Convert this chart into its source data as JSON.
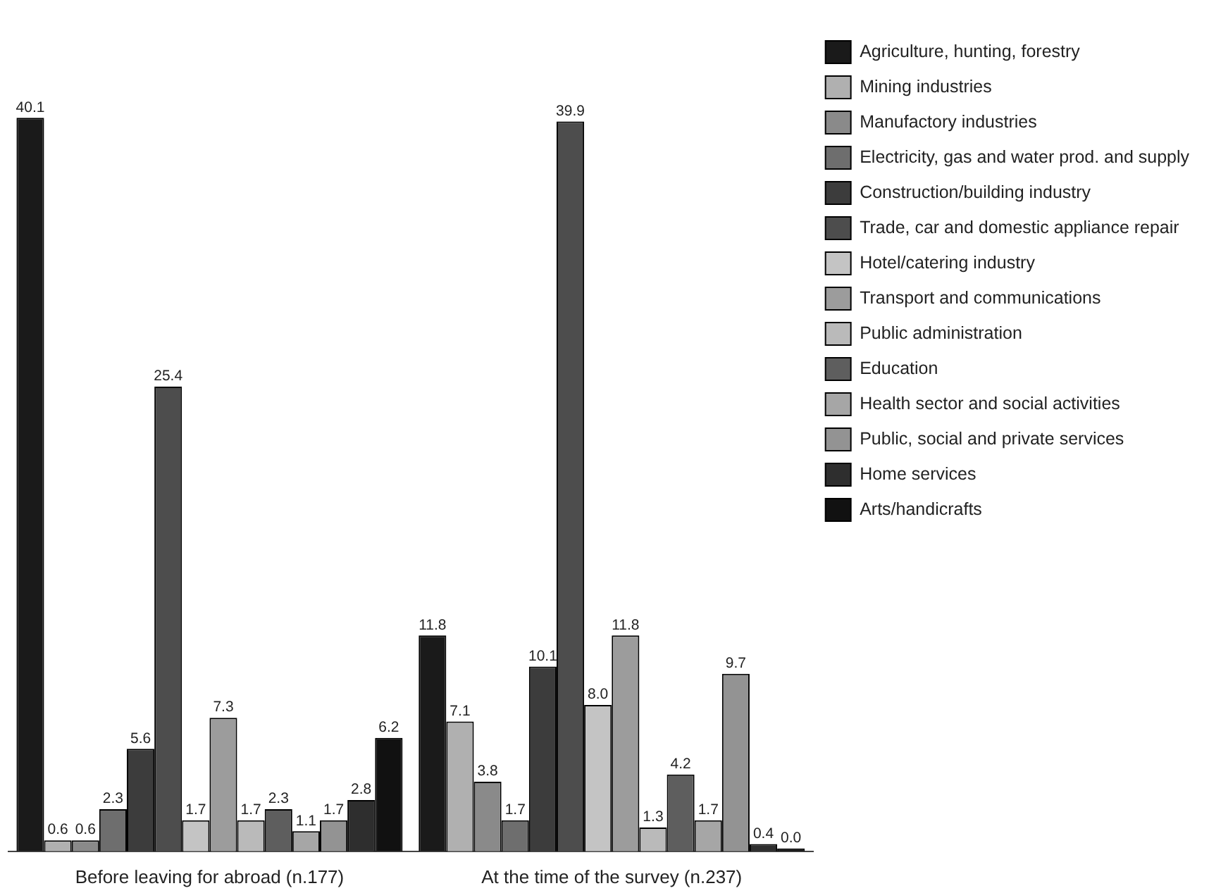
{
  "chart_data": {
    "type": "bar",
    "categories": [
      "Before leaving for abroad (n.177)",
      "At the time of the survey (n.237)"
    ],
    "legend": "right",
    "grid": false,
    "series": [
      {
        "name": "Agriculture, hunting, forestry",
        "color": "#1a1a1a",
        "values": [
          40.1,
          11.8
        ],
        "value_labels": [
          "40.1",
          "11.8"
        ]
      },
      {
        "name": "Mining industries",
        "color": "#b0b0b0",
        "values": [
          0.6,
          7.1
        ],
        "value_labels": [
          "0.6",
          "7.1"
        ]
      },
      {
        "name": "Manufactory industries",
        "color": "#8a8a8a",
        "values": [
          0.6,
          3.8
        ],
        "value_labels": [
          "0.6",
          "3.8"
        ]
      },
      {
        "name": "Electricity, gas and water prod. and supply",
        "color": "#6e6e6e",
        "values": [
          2.3,
          1.7
        ],
        "value_labels": [
          "2.3",
          "1.7"
        ]
      },
      {
        "name": "Construction/building industry",
        "color": "#3c3c3c",
        "values": [
          5.6,
          10.1
        ],
        "value_labels": [
          "5.6",
          "10.1"
        ]
      },
      {
        "name": "Trade, car and domestic appliance repair",
        "color": "#4d4d4d",
        "values": [
          25.4,
          39.9
        ],
        "value_labels": [
          "25.4",
          "39.9"
        ]
      },
      {
        "name": "Hotel/catering industry",
        "color": "#c4c4c4",
        "values": [
          1.7,
          8.0
        ],
        "value_labels": [
          "1.7",
          "8.0"
        ]
      },
      {
        "name": "Transport and communications",
        "color": "#9c9c9c",
        "values": [
          7.3,
          11.8
        ],
        "value_labels": [
          "7.3",
          "11.8"
        ]
      },
      {
        "name": "Public administration",
        "color": "#bababa",
        "values": [
          1.7,
          1.3
        ],
        "value_labels": [
          "1.7",
          "1.3"
        ]
      },
      {
        "name": "Education",
        "color": "#5e5e5e",
        "values": [
          2.3,
          4.2
        ],
        "value_labels": [
          "2.3",
          "4.2"
        ]
      },
      {
        "name": "Health sector and social activities",
        "color": "#a6a6a6",
        "values": [
          1.1,
          1.7
        ],
        "value_labels": [
          "1.1",
          "1.7"
        ]
      },
      {
        "name": "Public, social and private services",
        "color": "#939393",
        "values": [
          1.7,
          9.7
        ],
        "value_labels": [
          "1.7",
          "9.7"
        ]
      },
      {
        "name": "Home services",
        "color": "#2e2e2e",
        "values": [
          2.8,
          0.4
        ],
        "value_labels": [
          "2.8",
          "0.4"
        ]
      },
      {
        "name": "Arts/handicrafts",
        "color": "#111111",
        "values": [
          6.2,
          0.0
        ],
        "value_labels": [
          "6.2",
          "0.0"
        ]
      }
    ]
  }
}
